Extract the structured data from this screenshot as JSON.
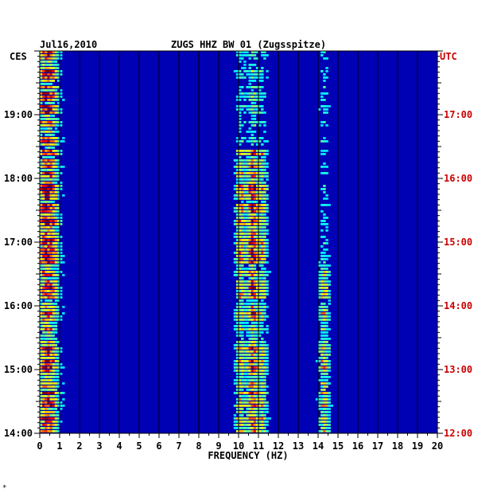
{
  "header": {
    "date": "Jul16,2010",
    "station": "ZUGS HHZ BW 01 (Zugsspitze)",
    "left_zone": "CES",
    "right_zone": "UTC"
  },
  "footer": {
    "mark": "*"
  },
  "colors": {
    "background_blue": "#0000b4",
    "grid": "#000000",
    "utc_label": "#cc0000",
    "local_label": "#000000"
  },
  "chart_data": {
    "type": "heatmap",
    "title": "ZUGS HHZ BW 01 (Zugsspitze)",
    "xlabel": "FREQUENCY (HZ)",
    "ylabel_left": "CES",
    "ylabel_right": "UTC",
    "xlim": [
      0,
      20
    ],
    "x_ticks": [
      "0",
      "1",
      "2",
      "3",
      "4",
      "5",
      "6",
      "7",
      "8",
      "9",
      "10",
      "11",
      "12",
      "13",
      "14",
      "15",
      "16",
      "17",
      "18",
      "19",
      "20"
    ],
    "y_ticks_left": [
      "19:00",
      "18:00",
      "17:00",
      "16:00",
      "15:00",
      "14:00"
    ],
    "y_ticks_right": [
      "17:00",
      "16:00",
      "15:00",
      "14:00",
      "13:00",
      "12:00"
    ],
    "colormap": "jet",
    "energy_bands_hz": [
      {
        "center": 0.4,
        "level": 0.9
      },
      {
        "center": 10.1,
        "level": 0.6
      },
      {
        "center": 10.7,
        "level": 0.85
      },
      {
        "center": 11.2,
        "level": 0.5
      },
      {
        "center": 14.3,
        "level": 0.6
      }
    ]
  }
}
